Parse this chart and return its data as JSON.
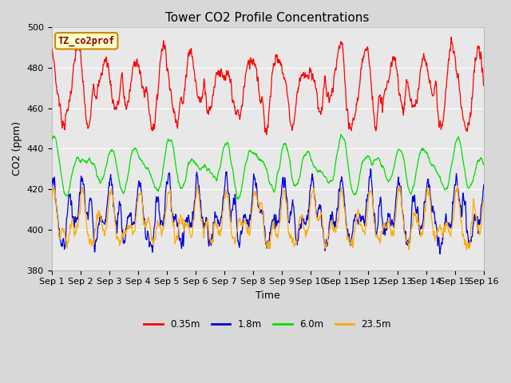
{
  "title": "Tower CO2 Profile Concentrations",
  "xlabel": "Time",
  "ylabel": "CO2 (ppm)",
  "ylim": [
    380,
    500
  ],
  "xlim": [
    0,
    15
  ],
  "xtick_labels": [
    "Sep 1",
    "Sep 2",
    "Sep 3",
    "Sep 4",
    "Sep 5",
    "Sep 6",
    "Sep 7",
    "Sep 8",
    "Sep 9",
    "Sep 10",
    "Sep 11",
    "Sep 12",
    "Sep 13",
    "Sep 14",
    "Sep 15",
    "Sep 16"
  ],
  "colors": {
    "0.35m": "#ff0000",
    "1.8m": "#0000dd",
    "6.0m": "#00dd00",
    "23.5m": "#ffaa00"
  },
  "legend_label": "TZ_co2prof",
  "legend_box_facecolor": "#ffffcc",
  "legend_box_edgecolor": "#cc8800",
  "legend_text_color": "#880000",
  "plot_bg_color": "#e8e8e8",
  "fig_bg_color": "#d8d8d8",
  "title_fontsize": 11,
  "axis_label_fontsize": 9,
  "tick_fontsize": 8
}
